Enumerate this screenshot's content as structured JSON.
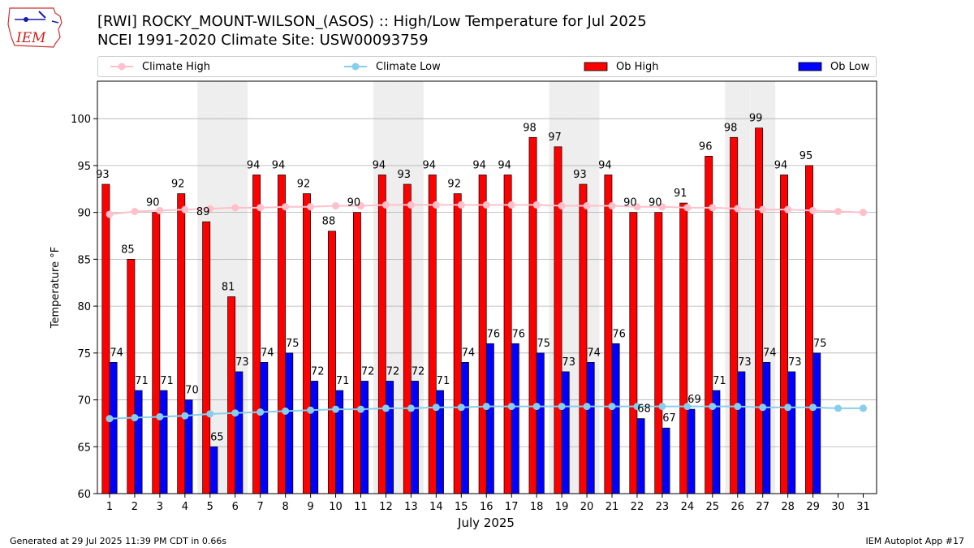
{
  "header": {
    "title_line1": "[RWI] ROCKY_MOUNT-WILSON_(ASOS) :: High/Low Temperature for Jul 2025",
    "title_line2": "NCEI 1991-2020 Climate Site: USW00093759",
    "logo_text": "IEM"
  },
  "legend": {
    "climate_high": "Climate High",
    "climate_low": "Climate Low",
    "ob_high": "Ob High",
    "ob_low": "Ob Low"
  },
  "footer": {
    "left": "Generated at 29 Jul 2025 11:39 PM CDT in 0.66s",
    "right": "IEM Autoplot App #17"
  },
  "colors": {
    "ob_high": "#ff0000",
    "ob_low": "#0000ff",
    "climate_high": "#ffc0cb",
    "climate_low": "#87ceeb",
    "weekend_band": "#eeeeee",
    "grid": "#b0b0b0"
  },
  "chart_data": {
    "type": "bar",
    "xlabel": "July 2025",
    "ylabel": "Temperature °F",
    "ylim": [
      60,
      104
    ],
    "yticks": [
      60,
      65,
      70,
      75,
      80,
      85,
      90,
      95,
      100
    ],
    "grid": "horizontal",
    "legend_position": "top",
    "categories": [
      1,
      2,
      3,
      4,
      5,
      6,
      7,
      8,
      9,
      10,
      11,
      12,
      13,
      14,
      15,
      16,
      17,
      18,
      19,
      20,
      21,
      22,
      23,
      24,
      25,
      26,
      27,
      28,
      29,
      30,
      31
    ],
    "shaded_days": [
      5,
      6,
      12,
      13,
      19,
      20,
      26,
      27
    ],
    "series": [
      {
        "name": "Ob High",
        "kind": "bar",
        "values": [
          93,
          85,
          90,
          92,
          89,
          81,
          94,
          94,
          92,
          88,
          90,
          94,
          93,
          94,
          92,
          94,
          94,
          98,
          97,
          93,
          94,
          90,
          90,
          91,
          96,
          98,
          99,
          94,
          95,
          null,
          null
        ]
      },
      {
        "name": "Ob Low",
        "kind": "bar",
        "values": [
          74,
          71,
          71,
          70,
          65,
          73,
          74,
          75,
          72,
          71,
          72,
          72,
          72,
          71,
          74,
          76,
          76,
          75,
          73,
          74,
          76,
          68,
          67,
          69,
          71,
          73,
          74,
          73,
          75,
          null,
          null
        ]
      },
      {
        "name": "Climate High",
        "kind": "line",
        "values": [
          89.8,
          90.1,
          90.2,
          90.3,
          90.4,
          90.5,
          90.5,
          90.6,
          90.6,
          90.7,
          90.7,
          90.8,
          90.8,
          90.8,
          90.8,
          90.8,
          90.8,
          90.8,
          90.7,
          90.7,
          90.7,
          90.6,
          90.6,
          90.5,
          90.5,
          90.4,
          90.3,
          90.3,
          90.2,
          90.1,
          90.0
        ]
      },
      {
        "name": "Climate Low",
        "kind": "line",
        "values": [
          68.0,
          68.1,
          68.2,
          68.3,
          68.5,
          68.6,
          68.7,
          68.8,
          68.9,
          69.0,
          69.0,
          69.1,
          69.1,
          69.2,
          69.2,
          69.3,
          69.3,
          69.3,
          69.3,
          69.3,
          69.3,
          69.3,
          69.3,
          69.3,
          69.3,
          69.3,
          69.2,
          69.2,
          69.2,
          69.1,
          69.1
        ]
      }
    ]
  }
}
